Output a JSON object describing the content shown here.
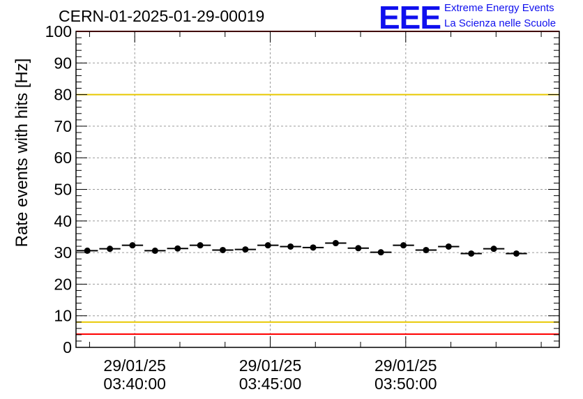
{
  "chart_data": {
    "type": "scatter",
    "title": "CERN-01-2025-01-29-00019",
    "xlabel": "",
    "ylabel": "Rate events with hits [Hz]",
    "ylim": [
      0,
      100
    ],
    "yticks": [
      "0",
      "10",
      "20",
      "30",
      "40",
      "50",
      "60",
      "70",
      "80",
      "90",
      "100"
    ],
    "xticks": [
      {
        "date": "29/01/25",
        "time": "03:40:00",
        "t": "03:40:00"
      },
      {
        "date": "29/01/25",
        "time": "03:45:00",
        "t": "03:45:00"
      },
      {
        "date": "29/01/25",
        "time": "03:50:00",
        "t": "03:50:00"
      }
    ],
    "xlim": [
      "03:37:50",
      "03:55:40"
    ],
    "grid": true,
    "reference_lines": [
      {
        "y": 100,
        "color": "#ff0000"
      },
      {
        "y": 80,
        "color": "#e8c800"
      },
      {
        "y": 8,
        "color": "#e8c800"
      },
      {
        "y": 4.2,
        "color": "#ff0000"
      }
    ],
    "series": [
      {
        "bin_width_s": 50,
        "x": [
          "03:38:15",
          "03:39:05",
          "03:39:55",
          "03:40:45",
          "03:41:35",
          "03:42:25",
          "03:43:15",
          "03:44:05",
          "03:44:55",
          "03:45:45",
          "03:46:35",
          "03:47:25",
          "03:48:15",
          "03:49:05",
          "03:49:55",
          "03:50:45",
          "03:51:35",
          "03:52:25",
          "03:53:15",
          "03:54:05"
        ],
        "values": [
          30.6,
          31.2,
          32.3,
          30.6,
          31.3,
          32.3,
          30.8,
          31.0,
          32.3,
          31.9,
          31.6,
          33.0,
          31.4,
          30.1,
          32.3,
          30.8,
          31.9,
          29.7,
          31.2,
          29.7
        ]
      }
    ]
  },
  "logo": {
    "text": "EEE",
    "line1": "Extreme Energy Events",
    "line2": "La Scienza nelle Scuole",
    "color": "#1010ee"
  }
}
